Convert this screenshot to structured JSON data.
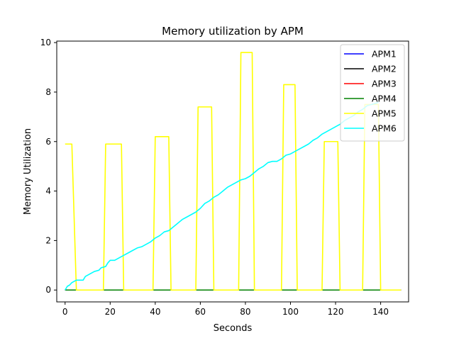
{
  "chart_data": {
    "type": "line",
    "title": "Memory utilization by APM",
    "xlabel": "Seconds",
    "ylabel": "Memory Utilization",
    "xlim": [
      -3.7,
      152.4
    ],
    "ylim": [
      -0.48,
      10.06
    ],
    "xticks": [
      0,
      20,
      40,
      60,
      80,
      100,
      120,
      140
    ],
    "yticks": [
      0,
      2,
      4,
      6,
      8,
      10
    ],
    "grid": false,
    "legend_position": "top-right",
    "series": [
      {
        "name": "APM1",
        "color": "#0000ff",
        "points": [
          [
            0,
            0
          ],
          [
            149,
            0
          ]
        ]
      },
      {
        "name": "APM2",
        "color": "#000000",
        "points": [
          [
            0,
            0
          ],
          [
            149,
            0
          ]
        ]
      },
      {
        "name": "APM3",
        "color": "#ff0000",
        "points": [
          [
            0,
            0
          ],
          [
            149,
            0
          ]
        ]
      },
      {
        "name": "APM4",
        "color": "#008000",
        "points": [
          [
            0,
            0
          ],
          [
            149,
            0
          ]
        ]
      },
      {
        "name": "APM5",
        "color": "#ffff00",
        "points": [
          [
            0,
            5.9
          ],
          [
            3,
            5.9
          ],
          [
            5,
            0
          ],
          [
            17,
            0
          ],
          [
            18,
            5.9
          ],
          [
            21,
            5.9
          ],
          [
            22,
            5.9
          ],
          [
            25,
            5.9
          ],
          [
            26,
            0
          ],
          [
            39,
            0
          ],
          [
            40,
            6.2
          ],
          [
            46,
            6.2
          ],
          [
            47,
            0
          ],
          [
            58,
            0
          ],
          [
            59,
            7.4
          ],
          [
            65,
            7.4
          ],
          [
            66,
            0
          ],
          [
            77,
            0
          ],
          [
            78,
            9.6
          ],
          [
            83,
            9.6
          ],
          [
            84,
            0
          ],
          [
            96,
            0
          ],
          [
            97,
            8.3
          ],
          [
            102,
            8.3
          ],
          [
            103,
            0
          ],
          [
            114,
            0
          ],
          [
            115,
            6.0
          ],
          [
            121,
            6.0
          ],
          [
            122,
            0
          ],
          [
            132,
            0
          ],
          [
            133,
            7.5
          ],
          [
            139,
            7.5
          ],
          [
            140,
            0
          ],
          [
            149,
            0
          ]
        ]
      },
      {
        "name": "APM6",
        "color": "#00ffff",
        "points": [
          [
            0,
            0
          ],
          [
            1,
            0.15
          ],
          [
            2,
            0.2
          ],
          [
            3,
            0.3
          ],
          [
            5,
            0.4
          ],
          [
            8,
            0.4
          ],
          [
            9,
            0.55
          ],
          [
            11,
            0.65
          ],
          [
            13,
            0.75
          ],
          [
            15,
            0.8
          ],
          [
            16,
            0.9
          ],
          [
            18,
            0.95
          ],
          [
            19,
            1.1
          ],
          [
            20,
            1.2
          ],
          [
            22,
            1.2
          ],
          [
            24,
            1.3
          ],
          [
            26,
            1.4
          ],
          [
            28,
            1.5
          ],
          [
            30,
            1.6
          ],
          [
            32,
            1.7
          ],
          [
            34,
            1.75
          ],
          [
            36,
            1.85
          ],
          [
            38,
            1.95
          ],
          [
            40,
            2.1
          ],
          [
            42,
            2.2
          ],
          [
            44,
            2.35
          ],
          [
            46,
            2.4
          ],
          [
            48,
            2.55
          ],
          [
            50,
            2.7
          ],
          [
            52,
            2.85
          ],
          [
            54,
            2.95
          ],
          [
            56,
            3.05
          ],
          [
            58,
            3.15
          ],
          [
            60,
            3.3
          ],
          [
            62,
            3.5
          ],
          [
            64,
            3.6
          ],
          [
            66,
            3.75
          ],
          [
            68,
            3.85
          ],
          [
            70,
            4.0
          ],
          [
            72,
            4.15
          ],
          [
            74,
            4.25
          ],
          [
            76,
            4.35
          ],
          [
            78,
            4.45
          ],
          [
            80,
            4.5
          ],
          [
            82,
            4.6
          ],
          [
            84,
            4.75
          ],
          [
            86,
            4.9
          ],
          [
            88,
            5.0
          ],
          [
            90,
            5.15
          ],
          [
            92,
            5.2
          ],
          [
            94,
            5.2
          ],
          [
            96,
            5.3
          ],
          [
            98,
            5.45
          ],
          [
            100,
            5.5
          ],
          [
            102,
            5.6
          ],
          [
            104,
            5.7
          ],
          [
            106,
            5.8
          ],
          [
            108,
            5.9
          ],
          [
            110,
            6.05
          ],
          [
            112,
            6.15
          ],
          [
            114,
            6.3
          ],
          [
            116,
            6.4
          ],
          [
            118,
            6.5
          ],
          [
            120,
            6.6
          ],
          [
            122,
            6.7
          ],
          [
            124,
            6.85
          ],
          [
            126,
            6.95
          ],
          [
            128,
            7.05
          ],
          [
            130,
            7.2
          ],
          [
            132,
            7.3
          ],
          [
            134,
            7.45
          ],
          [
            136,
            7.5
          ],
          [
            138,
            7.55
          ],
          [
            139,
            7.6
          ]
        ]
      }
    ]
  }
}
